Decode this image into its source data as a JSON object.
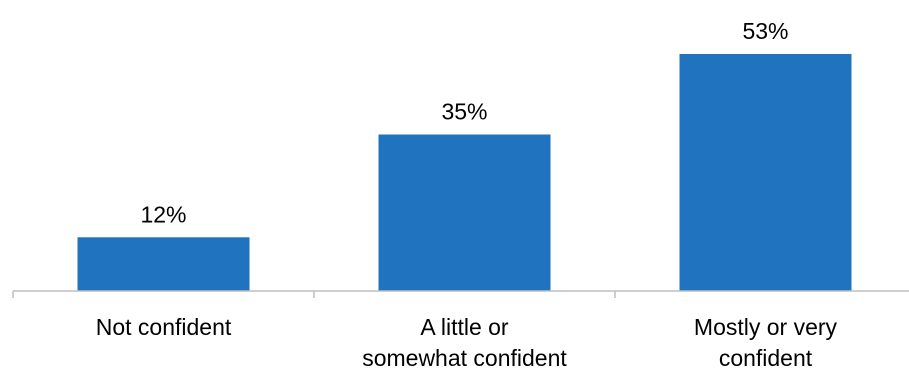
{
  "chart_data": {
    "type": "bar",
    "categories": [
      [
        "Not confident"
      ],
      [
        "A little or",
        "somewhat confident"
      ],
      [
        "Mostly or very",
        "confident"
      ]
    ],
    "values": [
      12,
      35,
      53
    ],
    "value_labels": [
      "12%",
      "35%",
      "53%"
    ],
    "title": "",
    "xlabel": "",
    "ylabel": "",
    "ylim": [
      0,
      53
    ],
    "grid": false,
    "legend": "none",
    "bar_color": "#1f73bf",
    "axis_color": "#bfbfbf"
  }
}
